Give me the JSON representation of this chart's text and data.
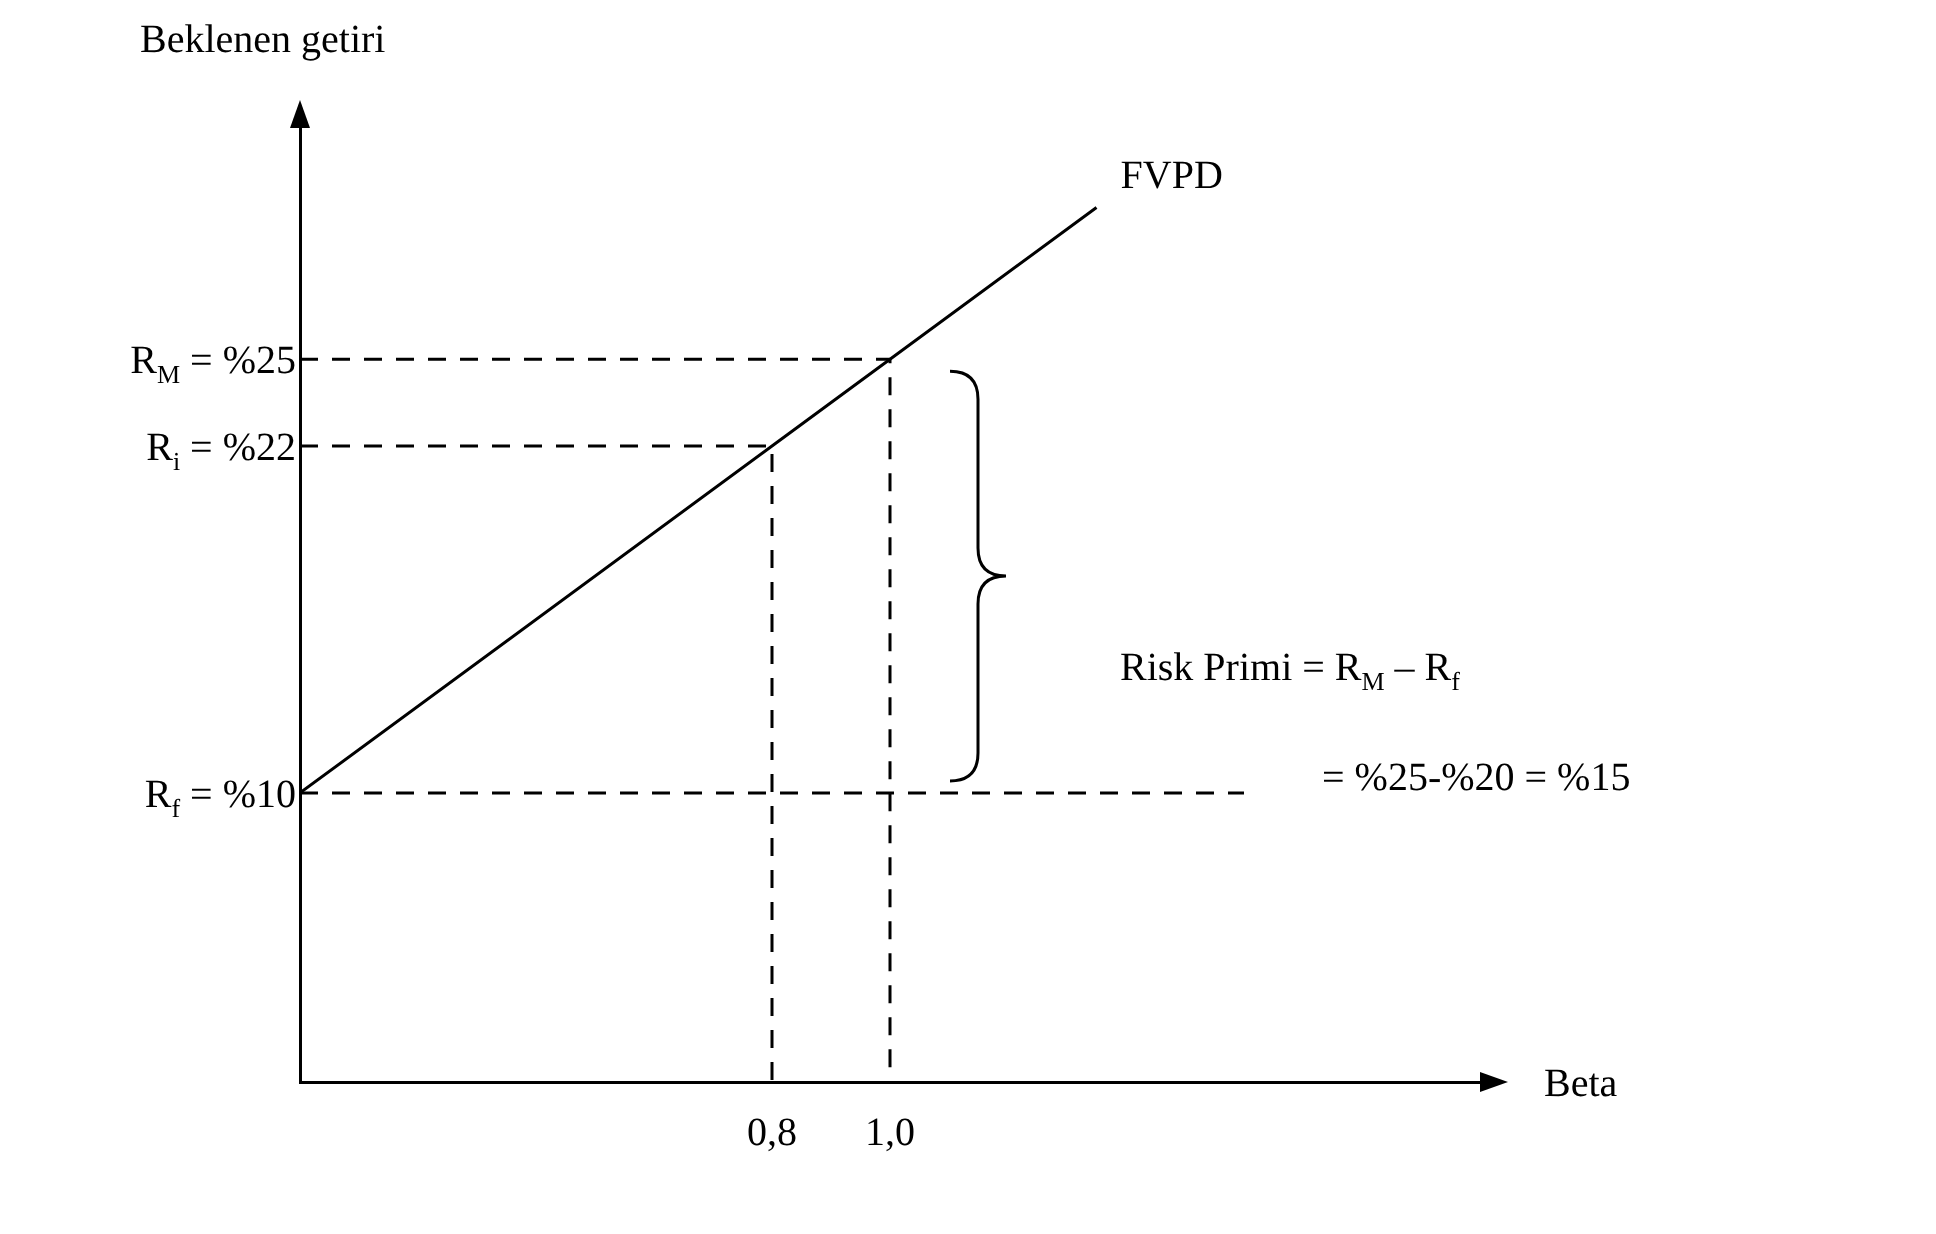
{
  "chart_data": {
    "type": "line",
    "xlabel": "Beta",
    "ylabel": "Beklenen getiri",
    "xlim": [
      0,
      2
    ],
    "ylim": [
      0,
      33
    ],
    "xticks": [
      {
        "value": 0.8,
        "label": "0,8"
      },
      {
        "value": 1.0,
        "label": "1,0"
      }
    ],
    "yticks": [
      {
        "value": 10,
        "label": "R$_{f}$ = %10"
      },
      {
        "value": 22,
        "label": "R$_{i}$ = %22"
      },
      {
        "value": 25,
        "label": "R$_{M}$ = %25"
      }
    ],
    "grid": false,
    "legend": false,
    "marker": "none",
    "series": [
      {
        "name": "FVPD",
        "color": "#000000",
        "x": [
          0,
          0.8,
          1.0,
          1.35
        ],
        "values": [
          10,
          22,
          25,
          30.25
        ],
        "line_style": "solid"
      },
      {
        "color": "#000000",
        "x": [
          0,
          1.0,
          1.0
        ],
        "values": [
          25,
          25,
          0
        ],
        "line_style": "dashed"
      },
      {
        "color": "#000000",
        "x": [
          0,
          0.8,
          0.8
        ],
        "values": [
          22,
          22,
          0
        ],
        "line_style": "dashed"
      },
      {
        "color": "#000000",
        "x": [
          0,
          1.6
        ],
        "values": [
          10,
          10
        ],
        "line_style": "dashed"
      }
    ],
    "annotations": [
      "Risk Primi = R$_{M}$ – R$_{f}$",
      "= %25-%20 = %15"
    ]
  }
}
